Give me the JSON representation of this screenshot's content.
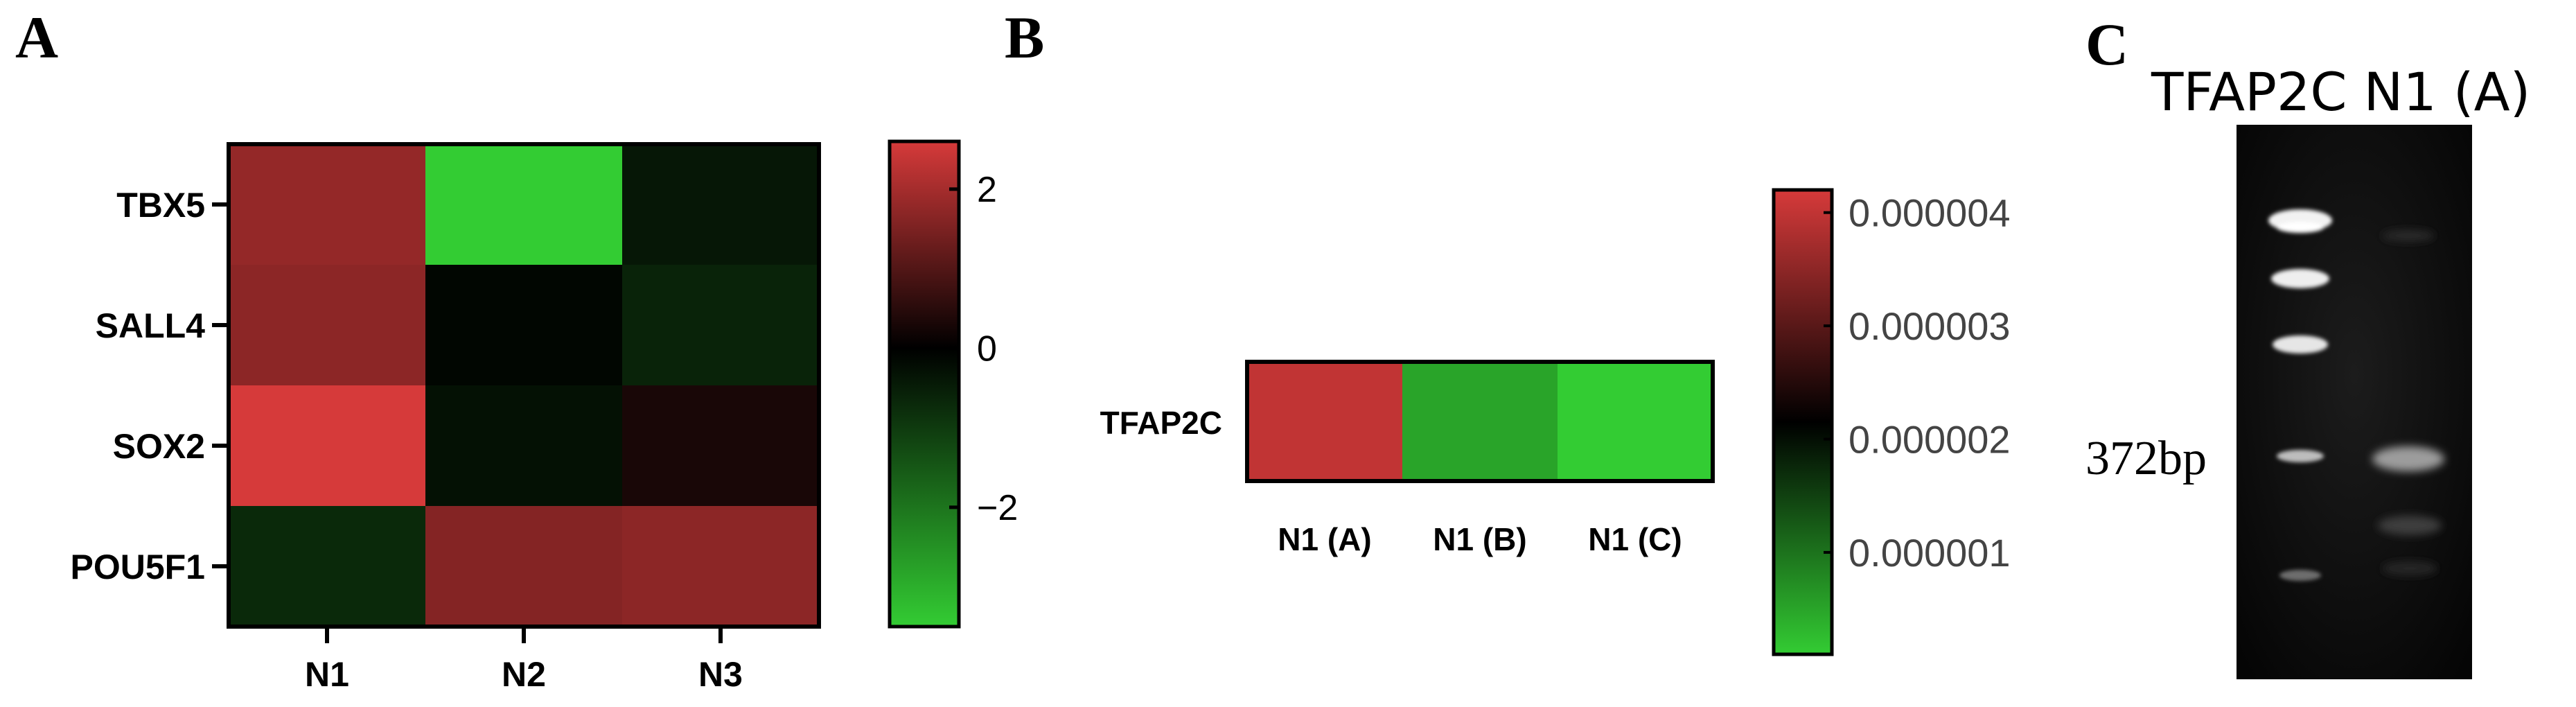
{
  "panels": {
    "a": "A",
    "b": "B",
    "c": "C"
  },
  "chart_data": [
    {
      "type": "heatmap",
      "rows": [
        "TBX5",
        "SALL4",
        "SOX2",
        "POU5F1"
      ],
      "columns": [
        "N1",
        "N2",
        "N3"
      ],
      "values": [
        [
          1.8,
          -3.5,
          -0.4
        ],
        [
          1.7,
          -0.1,
          -0.6
        ],
        [
          2.6,
          -0.3,
          0.3
        ],
        [
          -0.7,
          1.6,
          1.7
        ]
      ],
      "colorbar": {
        "min": -3.5,
        "max": 2.6,
        "ticks": [
          2,
          0,
          -2
        ],
        "tick_labels": [
          "2",
          "0",
          "−2"
        ]
      },
      "colors": {
        "low": "#33cc33",
        "mid": "#000000",
        "high": "#d63a3a"
      }
    },
    {
      "type": "heatmap",
      "rows": [
        "TFAP2C"
      ],
      "columns": [
        "N1 (A)",
        "N1 (B)",
        "N1 (C)"
      ],
      "values": [
        [
          4e-06,
          5e-07,
          1e-07
        ]
      ],
      "colorbar": {
        "min": 1e-07,
        "max": 4.2e-06,
        "ticks": [
          4e-06,
          3e-06,
          2e-06,
          1e-06
        ],
        "tick_labels": [
          "0.000004",
          "0.000003",
          "0.000002",
          "0.000001"
        ]
      },
      "colors": {
        "low": "#33cc33",
        "mid": "#000000",
        "high": "#d63a3a"
      }
    }
  ],
  "gel": {
    "title": "TFAP2C N1 (A)",
    "marker_label": "372bp"
  }
}
